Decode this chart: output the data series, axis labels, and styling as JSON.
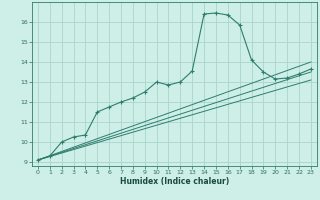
{
  "xlabel": "Humidex (Indice chaleur)",
  "background_color": "#ceeee8",
  "grid_color": "#aad4cc",
  "line_color": "#2e7d6e",
  "xlim": [
    -0.5,
    23.5
  ],
  "ylim": [
    8.8,
    17.0
  ],
  "yticks": [
    9,
    10,
    11,
    12,
    13,
    14,
    15,
    16
  ],
  "xticks": [
    0,
    1,
    2,
    3,
    4,
    5,
    6,
    7,
    8,
    9,
    10,
    11,
    12,
    13,
    14,
    15,
    16,
    17,
    18,
    19,
    20,
    21,
    22,
    23
  ],
  "main_series": {
    "x": [
      0,
      1,
      2,
      3,
      4,
      5,
      6,
      7,
      8,
      9,
      10,
      11,
      12,
      13,
      14,
      15,
      16,
      17,
      18,
      19,
      20,
      21,
      22,
      23
    ],
    "y": [
      9.1,
      9.3,
      10.0,
      10.25,
      10.35,
      11.5,
      11.75,
      12.0,
      12.2,
      12.5,
      13.0,
      12.85,
      13.0,
      13.55,
      16.4,
      16.45,
      16.35,
      15.85,
      14.1,
      13.5,
      13.15,
      13.2,
      13.4,
      13.65
    ]
  },
  "straight_lines": [
    {
      "x": [
        0,
        23
      ],
      "y": [
        9.1,
        14.0
      ]
    },
    {
      "x": [
        0,
        23
      ],
      "y": [
        9.1,
        13.5
      ]
    },
    {
      "x": [
        0,
        23
      ],
      "y": [
        9.1,
        13.1
      ]
    }
  ]
}
